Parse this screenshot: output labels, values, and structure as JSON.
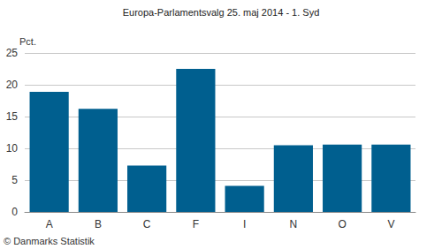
{
  "chart_data": {
    "type": "bar",
    "title": "Europa-Parlamentsvalg 25. maj 2014 - 1. Syd",
    "y_label": "Pct.",
    "annotations": [
      "© Danmarks Statistik"
    ],
    "categories": [
      "A",
      "B",
      "C",
      "F",
      "I",
      "N",
      "O",
      "V"
    ],
    "values": [
      18.9,
      16.2,
      7.3,
      22.5,
      4.1,
      10.5,
      10.6,
      10.6
    ],
    "color": "#005f8f",
    "ylim": [
      0,
      25
    ],
    "yticks": [
      0,
      5,
      10,
      15,
      20,
      25
    ],
    "grid": true
  }
}
